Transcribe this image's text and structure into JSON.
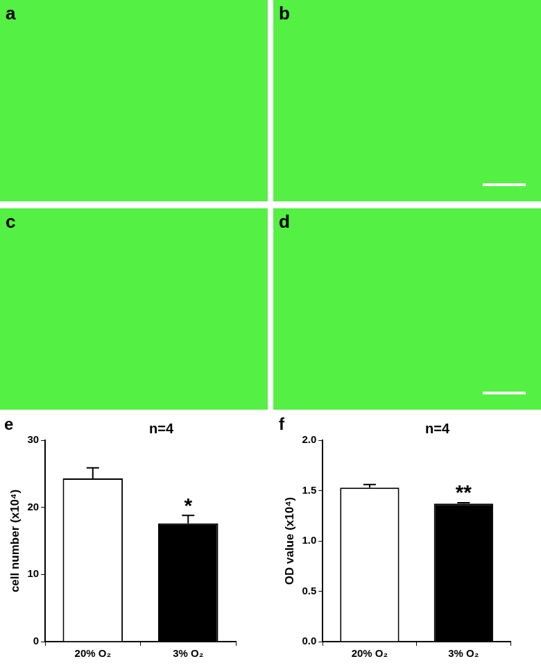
{
  "image_panels": [
    "a",
    "b",
    "c",
    "d"
  ],
  "chart_data": [
    {
      "type": "bar",
      "panel_label": "e",
      "categories": [
        "20% O₂",
        "3% O₂"
      ],
      "values": [
        24.3,
        17.6
      ],
      "errors": [
        1.6,
        1.2
      ],
      "colors": [
        "#ffffff",
        "#000000"
      ],
      "y_label": "cell number (x10⁴)",
      "ylim": [
        0,
        30
      ],
      "yticks": [
        0,
        10,
        20,
        30
      ],
      "grid": false,
      "annotations": [
        {
          "text": "n=4"
        },
        {
          "text": "*",
          "category": "3% O₂"
        }
      ]
    },
    {
      "type": "bar",
      "panel_label": "f",
      "categories": [
        "20% O₂",
        "3% O₂"
      ],
      "values": [
        1.53,
        1.37
      ],
      "errors": [
        0.03,
        0.01
      ],
      "colors": [
        "#ffffff",
        "#000000"
      ],
      "y_label": "OD value (x10⁴)",
      "ylim": [
        0,
        2
      ],
      "yticks": [
        {
          "value": 0,
          "label": "0.0"
        },
        0.5,
        {
          "value": 1,
          "label": "1.0"
        },
        1.5,
        {
          "value": 2,
          "label": "2.0"
        }
      ],
      "grid": false,
      "annotations": [
        {
          "text": "n=4"
        },
        {
          "text": "**",
          "category": "3% O₂"
        }
      ]
    }
  ]
}
